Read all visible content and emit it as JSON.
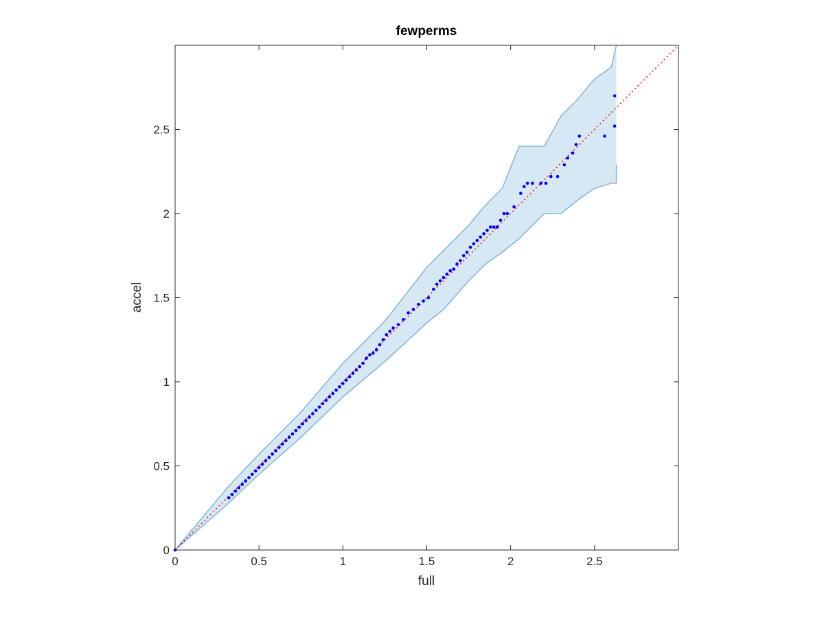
{
  "chart_data": {
    "type": "scatter",
    "title": "fewperms",
    "xlabel": "full",
    "ylabel": "accel",
    "xlim": [
      0,
      3
    ],
    "ylim": [
      0,
      3
    ],
    "xticks": [
      0,
      0.5,
      1,
      1.5,
      2,
      2.5
    ],
    "yticks": [
      0,
      0.5,
      1,
      1.5,
      2,
      2.5
    ],
    "xtick_labels": [
      "0",
      "0.5",
      "1",
      "1.5",
      "2",
      "2.5"
    ],
    "ytick_labels": [
      "0",
      "0.5",
      "1",
      "1.5",
      "2",
      "2.5"
    ],
    "grid": false,
    "colors": {
      "points": "#0000ff",
      "reference_line": "#ff0000",
      "band_fill": "#d6e8f4",
      "band_edge": "#7fb5d9",
      "axes": "#262626"
    },
    "reference_line": {
      "from": [
        0,
        0
      ],
      "to": [
        3,
        3
      ],
      "style": "dotted"
    },
    "band": {
      "x": [
        0,
        0.32,
        0.32,
        0.5,
        0.75,
        1.0,
        1.25,
        1.5,
        1.6,
        1.75,
        1.85,
        1.95,
        2.05,
        2.2,
        2.3,
        2.4,
        2.5,
        2.6,
        2.63
      ],
      "upper": [
        0,
        0.38,
        0.38,
        0.57,
        0.82,
        1.11,
        1.36,
        1.68,
        1.78,
        1.93,
        2.05,
        2.15,
        2.4,
        2.4,
        2.58,
        2.68,
        2.8,
        2.87,
        3.0
      ],
      "lower": [
        0,
        0.28,
        0.28,
        0.45,
        0.67,
        0.91,
        1.12,
        1.35,
        1.43,
        1.6,
        1.7,
        1.77,
        1.85,
        2.0,
        2.0,
        2.08,
        2.15,
        2.18,
        2.18
      ],
      "tail_lower_x": [
        2.63,
        2.63
      ],
      "tail_lower_y": [
        2.18,
        2.29
      ]
    },
    "series": [
      {
        "x": [
          0,
          0.32,
          0.34,
          0.36,
          0.38,
          0.4,
          0.42,
          0.44,
          0.46,
          0.48,
          0.5,
          0.52,
          0.54,
          0.56,
          0.58,
          0.6,
          0.62,
          0.64,
          0.66,
          0.68,
          0.7,
          0.72,
          0.74,
          0.76,
          0.78,
          0.8,
          0.82,
          0.84,
          0.86,
          0.88,
          0.9,
          0.92,
          0.94,
          0.96,
          0.98,
          1.0,
          1.02,
          1.04,
          1.06,
          1.08,
          1.1,
          1.12,
          1.14,
          1.16,
          1.18,
          1.2,
          1.22,
          1.24,
          1.26,
          1.28,
          1.3,
          1.33,
          1.36,
          1.39,
          1.42,
          1.45,
          1.48,
          1.51,
          1.54,
          1.56,
          1.58,
          1.6,
          1.62,
          1.64,
          1.66,
          1.68,
          1.7,
          1.72,
          1.74,
          1.76,
          1.78,
          1.8,
          1.82,
          1.84,
          1.86,
          1.88,
          1.9,
          1.92,
          1.94,
          1.96,
          1.98,
          2.02,
          2.06,
          2.08,
          2.1,
          2.13,
          2.18,
          2.21,
          2.24,
          2.28,
          2.32,
          2.34,
          2.37,
          2.39,
          2.41,
          2.56,
          2.62,
          2.62
        ],
        "y": [
          0,
          0.31,
          0.33,
          0.35,
          0.37,
          0.39,
          0.41,
          0.43,
          0.45,
          0.47,
          0.49,
          0.51,
          0.53,
          0.55,
          0.57,
          0.59,
          0.61,
          0.63,
          0.65,
          0.67,
          0.69,
          0.71,
          0.73,
          0.75,
          0.77,
          0.79,
          0.81,
          0.83,
          0.85,
          0.87,
          0.89,
          0.91,
          0.93,
          0.95,
          0.97,
          0.99,
          1.01,
          1.03,
          1.05,
          1.07,
          1.09,
          1.11,
          1.14,
          1.16,
          1.17,
          1.19,
          1.22,
          1.25,
          1.28,
          1.3,
          1.32,
          1.34,
          1.37,
          1.41,
          1.43,
          1.46,
          1.48,
          1.5,
          1.55,
          1.58,
          1.6,
          1.62,
          1.64,
          1.66,
          1.67,
          1.7,
          1.72,
          1.75,
          1.77,
          1.8,
          1.82,
          1.84,
          1.86,
          1.88,
          1.9,
          1.92,
          1.92,
          1.92,
          1.96,
          2.0,
          2.0,
          2.04,
          2.12,
          2.16,
          2.18,
          2.18,
          2.18,
          2.18,
          2.22,
          2.22,
          2.29,
          2.33,
          2.36,
          2.41,
          2.46,
          2.46,
          2.52,
          2.7
        ]
      }
    ]
  }
}
